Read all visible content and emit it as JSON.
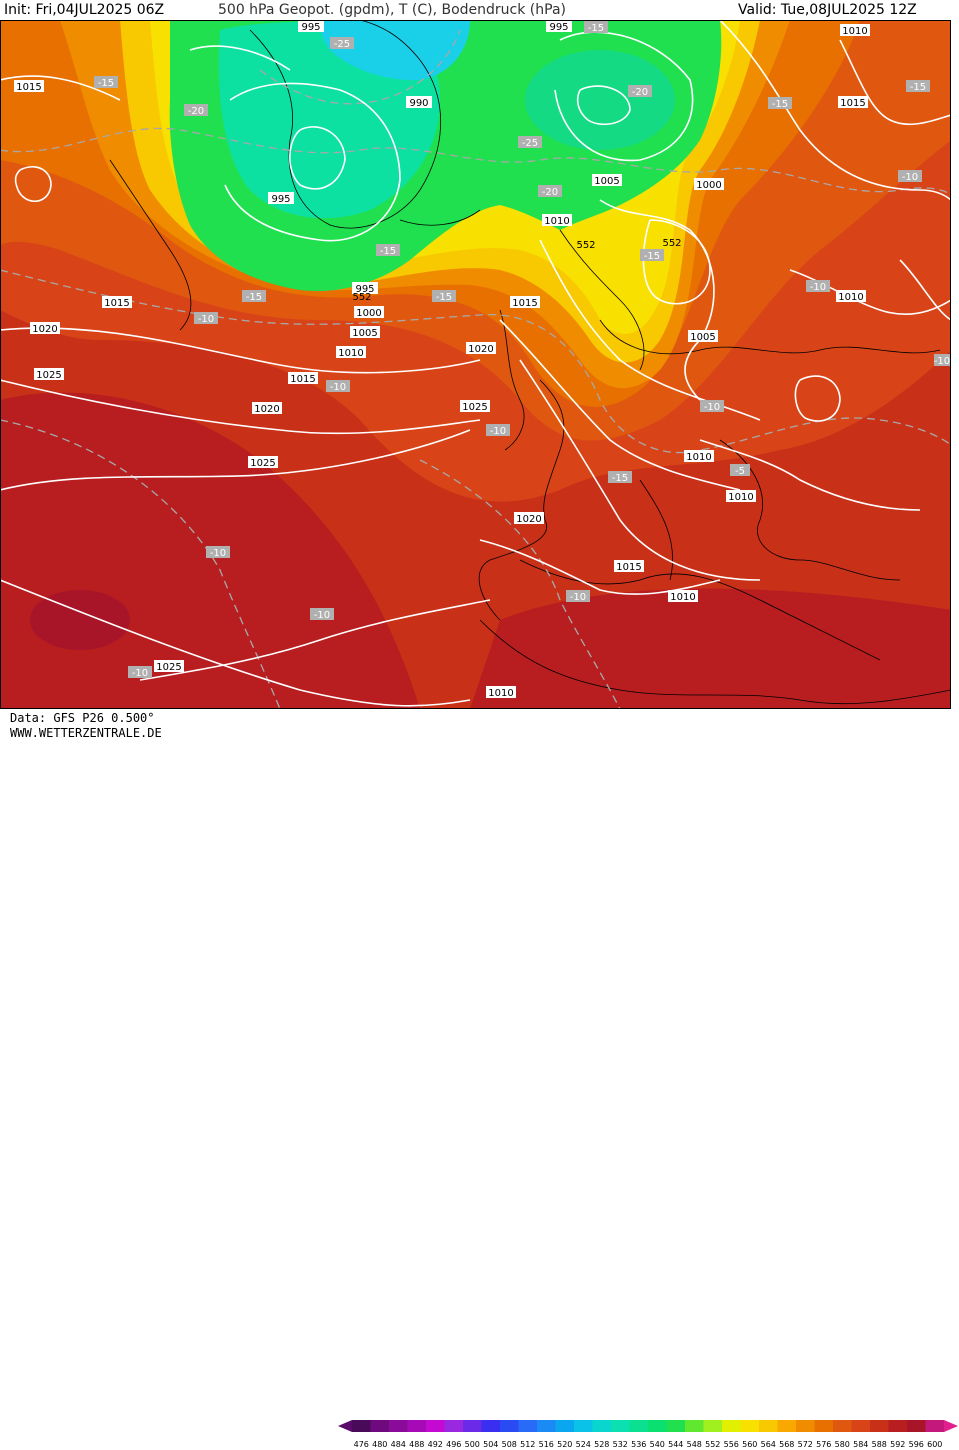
{
  "header": {
    "init": "Init: Fri,04JUL2025 06Z",
    "title": "500 hPa Geopot. (gpdm), T (C), Bodendruck (hPa)",
    "valid": "Valid: Tue,08JUL2025 12Z"
  },
  "footer": {
    "data_source": "Data: GFS P26 0.500°",
    "website": "WWW.WETTERZENTRALE.DE"
  },
  "legend": {
    "values": [
      "476",
      "480",
      "484",
      "488",
      "492",
      "496",
      "500",
      "504",
      "508",
      "512",
      "516",
      "520",
      "524",
      "528",
      "532",
      "536",
      "540",
      "544",
      "548",
      "552",
      "556",
      "560",
      "564",
      "568",
      "572",
      "576",
      "580",
      "584",
      "588",
      "592",
      "596",
      "600"
    ],
    "colors": [
      "#4a0a5a",
      "#6e0a7e",
      "#8a0a9a",
      "#a60ab6",
      "#c40ad2",
      "#9a28e0",
      "#6a2ae8",
      "#3a2ef0",
      "#2a4af4",
      "#2a6af8",
      "#1a8af4",
      "#0aa6f0",
      "#0ac2e8",
      "#0ad6d0",
      "#0ae0b0",
      "#0ae090",
      "#0ae070",
      "#20e050",
      "#60e830",
      "#a0f020",
      "#e0f000",
      "#f8e000",
      "#f8c800",
      "#f8a800",
      "#f08c00",
      "#e87000",
      "#e05810",
      "#d84418",
      "#c83018",
      "#b81e20",
      "#a81428",
      "#c4187c"
    ],
    "arrow_left_color": "#5a0a6a",
    "arrow_right_color": "#e0208c"
  },
  "map": {
    "isobar_labels": [
      {
        "text": "995"
      },
      {
        "text": "995"
      },
      {
        "text": "1010"
      },
      {
        "text": "1015"
      },
      {
        "text": "1015"
      },
      {
        "text": "990"
      },
      {
        "text": "995"
      },
      {
        "text": "1005"
      },
      {
        "text": "1000"
      },
      {
        "text": "1010"
      },
      {
        "text": "552"
      },
      {
        "text": "552"
      },
      {
        "text": "995"
      },
      {
        "text": "552"
      },
      {
        "text": "1015"
      },
      {
        "text": "1000"
      },
      {
        "text": "1005"
      },
      {
        "text": "1015"
      },
      {
        "text": "1020"
      },
      {
        "text": "1010"
      },
      {
        "text": "1020"
      },
      {
        "text": "1025"
      },
      {
        "text": "1015"
      },
      {
        "text": "1020"
      },
      {
        "text": "1025"
      },
      {
        "text": "1025"
      },
      {
        "text": "1005"
      },
      {
        "text": "1010"
      },
      {
        "text": "1010"
      },
      {
        "text": "1020"
      },
      {
        "text": "1015"
      },
      {
        "text": "1010"
      },
      {
        "text": "1025"
      },
      {
        "text": "1010"
      },
      {
        "text": "1010"
      }
    ],
    "temp_labels": [
      {
        "text": "-25"
      },
      {
        "text": "-15"
      },
      {
        "text": "-15"
      },
      {
        "text": "-20"
      },
      {
        "text": "-20"
      },
      {
        "text": "-25"
      },
      {
        "text": "-20"
      },
      {
        "text": "-15"
      },
      {
        "text": "-15"
      },
      {
        "text": "-15"
      },
      {
        "text": "-10"
      },
      {
        "text": "-15"
      },
      {
        "text": "-10"
      },
      {
        "text": "-15"
      },
      {
        "text": "-10"
      },
      {
        "text": "-10"
      },
      {
        "text": "-10"
      },
      {
        "text": "-15"
      },
      {
        "text": "-10"
      },
      {
        "text": "-5"
      },
      {
        "text": "-10"
      },
      {
        "text": "-10"
      },
      {
        "text": "-10"
      },
      {
        "text": "-10"
      },
      {
        "text": "-15"
      },
      {
        "text": "-10"
      }
    ]
  }
}
